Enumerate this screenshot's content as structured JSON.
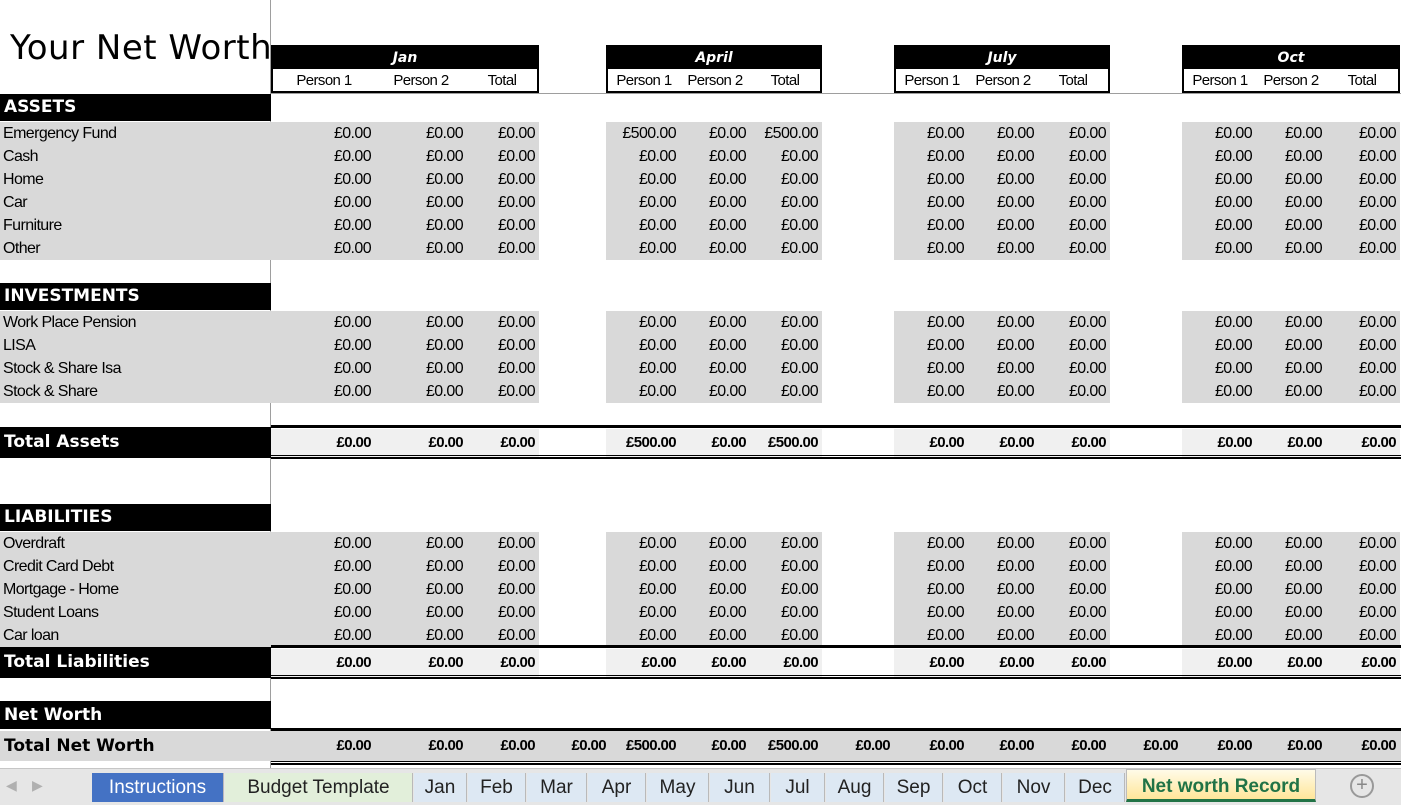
{
  "title": "Your Net Worth",
  "months": [
    "Jan",
    "April",
    "July",
    "Oct"
  ],
  "subheaders": [
    "Person 1",
    "Person 2",
    "Total"
  ],
  "sections": {
    "assets": {
      "label": "ASSETS",
      "rows": [
        {
          "label": "Emergency Fund",
          "values": [
            [
              "£0.00",
              "£0.00",
              "£0.00"
            ],
            [
              "£500.00",
              "£0.00",
              "£500.00"
            ],
            [
              "£0.00",
              "£0.00",
              "£0.00"
            ],
            [
              "£0.00",
              "£0.00",
              "£0.00"
            ]
          ]
        },
        {
          "label": "Cash",
          "values": [
            [
              "£0.00",
              "£0.00",
              "£0.00"
            ],
            [
              "£0.00",
              "£0.00",
              "£0.00"
            ],
            [
              "£0.00",
              "£0.00",
              "£0.00"
            ],
            [
              "£0.00",
              "£0.00",
              "£0.00"
            ]
          ]
        },
        {
          "label": "Home",
          "values": [
            [
              "£0.00",
              "£0.00",
              "£0.00"
            ],
            [
              "£0.00",
              "£0.00",
              "£0.00"
            ],
            [
              "£0.00",
              "£0.00",
              "£0.00"
            ],
            [
              "£0.00",
              "£0.00",
              "£0.00"
            ]
          ]
        },
        {
          "label": "Car",
          "values": [
            [
              "£0.00",
              "£0.00",
              "£0.00"
            ],
            [
              "£0.00",
              "£0.00",
              "£0.00"
            ],
            [
              "£0.00",
              "£0.00",
              "£0.00"
            ],
            [
              "£0.00",
              "£0.00",
              "£0.00"
            ]
          ]
        },
        {
          "label": "Furniture",
          "values": [
            [
              "£0.00",
              "£0.00",
              "£0.00"
            ],
            [
              "£0.00",
              "£0.00",
              "£0.00"
            ],
            [
              "£0.00",
              "£0.00",
              "£0.00"
            ],
            [
              "£0.00",
              "£0.00",
              "£0.00"
            ]
          ]
        },
        {
          "label": "Other",
          "values": [
            [
              "£0.00",
              "£0.00",
              "£0.00"
            ],
            [
              "£0.00",
              "£0.00",
              "£0.00"
            ],
            [
              "£0.00",
              "£0.00",
              "£0.00"
            ],
            [
              "£0.00",
              "£0.00",
              "£0.00"
            ]
          ]
        }
      ]
    },
    "investments": {
      "label": "INVESTMENTS",
      "rows": [
        {
          "label": "Work Place Pension",
          "values": [
            [
              "£0.00",
              "£0.00",
              "£0.00"
            ],
            [
              "£0.00",
              "£0.00",
              "£0.00"
            ],
            [
              "£0.00",
              "£0.00",
              "£0.00"
            ],
            [
              "£0.00",
              "£0.00",
              "£0.00"
            ]
          ]
        },
        {
          "label": "LISA",
          "values": [
            [
              "£0.00",
              "£0.00",
              "£0.00"
            ],
            [
              "£0.00",
              "£0.00",
              "£0.00"
            ],
            [
              "£0.00",
              "£0.00",
              "£0.00"
            ],
            [
              "£0.00",
              "£0.00",
              "£0.00"
            ]
          ]
        },
        {
          "label": "Stock & Share Isa",
          "values": [
            [
              "£0.00",
              "£0.00",
              "£0.00"
            ],
            [
              "£0.00",
              "£0.00",
              "£0.00"
            ],
            [
              "£0.00",
              "£0.00",
              "£0.00"
            ],
            [
              "£0.00",
              "£0.00",
              "£0.00"
            ]
          ]
        },
        {
          "label": "Stock & Share",
          "values": [
            [
              "£0.00",
              "£0.00",
              "£0.00"
            ],
            [
              "£0.00",
              "£0.00",
              "£0.00"
            ],
            [
              "£0.00",
              "£0.00",
              "£0.00"
            ],
            [
              "£0.00",
              "£0.00",
              "£0.00"
            ]
          ]
        }
      ]
    },
    "total_assets": {
      "label": "Total Assets",
      "values": [
        [
          "£0.00",
          "£0.00",
          "£0.00"
        ],
        [
          "£500.00",
          "£0.00",
          "£500.00"
        ],
        [
          "£0.00",
          "£0.00",
          "£0.00"
        ],
        [
          "£0.00",
          "£0.00",
          "£0.00"
        ]
      ]
    },
    "liabilities": {
      "label": "LIABILITIES",
      "rows": [
        {
          "label": "Overdraft",
          "values": [
            [
              "£0.00",
              "£0.00",
              "£0.00"
            ],
            [
              "£0.00",
              "£0.00",
              "£0.00"
            ],
            [
              "£0.00",
              "£0.00",
              "£0.00"
            ],
            [
              "£0.00",
              "£0.00",
              "£0.00"
            ]
          ]
        },
        {
          "label": "Credit Card Debt",
          "values": [
            [
              "£0.00",
              "£0.00",
              "£0.00"
            ],
            [
              "£0.00",
              "£0.00",
              "£0.00"
            ],
            [
              "£0.00",
              "£0.00",
              "£0.00"
            ],
            [
              "£0.00",
              "£0.00",
              "£0.00"
            ]
          ]
        },
        {
          "label": "Mortgage - Home",
          "values": [
            [
              "£0.00",
              "£0.00",
              "£0.00"
            ],
            [
              "£0.00",
              "£0.00",
              "£0.00"
            ],
            [
              "£0.00",
              "£0.00",
              "£0.00"
            ],
            [
              "£0.00",
              "£0.00",
              "£0.00"
            ]
          ]
        },
        {
          "label": "Student Loans",
          "values": [
            [
              "£0.00",
              "£0.00",
              "£0.00"
            ],
            [
              "£0.00",
              "£0.00",
              "£0.00"
            ],
            [
              "£0.00",
              "£0.00",
              "£0.00"
            ],
            [
              "£0.00",
              "£0.00",
              "£0.00"
            ]
          ]
        },
        {
          "label": "Car loan",
          "values": [
            [
              "£0.00",
              "£0.00",
              "£0.00"
            ],
            [
              "£0.00",
              "£0.00",
              "£0.00"
            ],
            [
              "£0.00",
              "£0.00",
              "£0.00"
            ],
            [
              "£0.00",
              "£0.00",
              "£0.00"
            ]
          ]
        }
      ]
    },
    "total_liabilities": {
      "label": "Total Liabilities",
      "values": [
        [
          "£0.00",
          "£0.00",
          "£0.00"
        ],
        [
          "£0.00",
          "£0.00",
          "£0.00"
        ],
        [
          "£0.00",
          "£0.00",
          "£0.00"
        ],
        [
          "£0.00",
          "£0.00",
          "£0.00"
        ]
      ]
    },
    "net_worth": {
      "label": "Net Worth"
    },
    "total_net_worth": {
      "label": "Total Net Worth",
      "values": [
        "£0.00",
        "£0.00",
        "£0.00",
        "£0.00",
        "£500.00",
        "£0.00",
        "£500.00",
        "£0.00",
        "£0.00",
        "£0.00",
        "£0.00",
        "£0.00",
        "£0.00",
        "£0.00",
        "£0.00"
      ]
    }
  },
  "tabs": [
    {
      "label": "Instructions",
      "bg": "#4472c4",
      "color": "#ffffff"
    },
    {
      "label": "Budget Template",
      "bg": "#e2efda",
      "color": "#222222"
    },
    {
      "label": "Jan"
    },
    {
      "label": "Feb"
    },
    {
      "label": "Mar"
    },
    {
      "label": "Apr"
    },
    {
      "label": "May"
    },
    {
      "label": "Jun"
    },
    {
      "label": "Jul"
    },
    {
      "label": "Aug"
    },
    {
      "label": "Sep"
    },
    {
      "label": "Oct"
    },
    {
      "label": "Nov"
    },
    {
      "label": "Dec"
    },
    {
      "label": "Net worth Record",
      "active": true,
      "bg": "#fff2cc",
      "color": "#217346"
    }
  ],
  "new_sheet_icon": "plus-circle-icon"
}
